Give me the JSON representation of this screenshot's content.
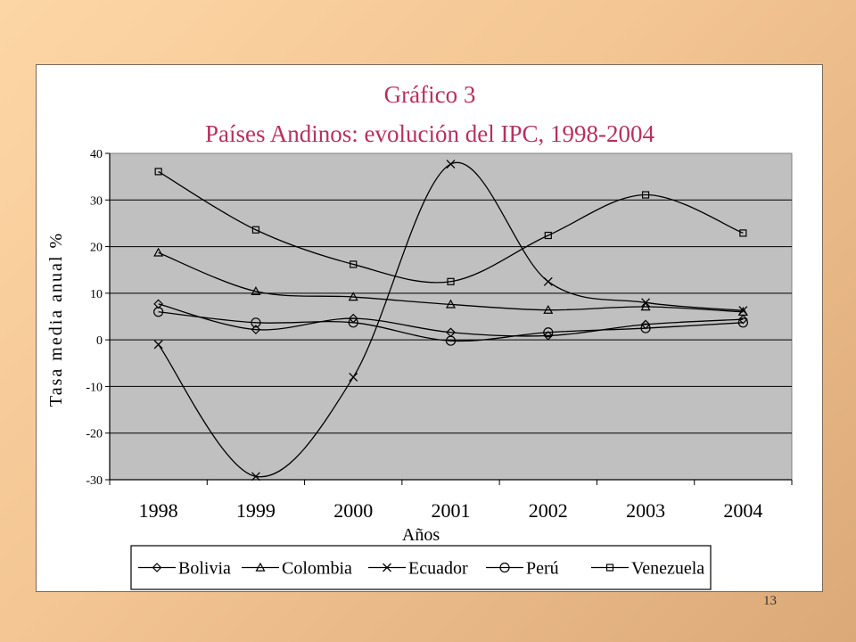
{
  "page": {
    "number": "13"
  },
  "chart_data": {
    "type": "line",
    "title": "Gráfico 3",
    "subtitle": "Países Andinos: evolución del IPC, 1998-2004",
    "xlabel": "Años",
    "ylabel": "Tasa media anual %",
    "categories": [
      "1998",
      "1999",
      "2000",
      "2001",
      "2002",
      "2003",
      "2004"
    ],
    "ylim": [
      -30,
      40
    ],
    "yticks": [
      40,
      30,
      20,
      10,
      0,
      -10,
      -20,
      -30
    ],
    "grid": true,
    "legend_position": "bottom",
    "plot_background": "#c0c0c0",
    "series": [
      {
        "name": "Bolivia",
        "marker": "diamond",
        "values": [
          7.7,
          2.2,
          4.6,
          1.6,
          0.9,
          3.3,
          4.4
        ]
      },
      {
        "name": "Colombia",
        "marker": "triangle",
        "values": [
          18.7,
          10.4,
          9.2,
          7.6,
          6.4,
          7.1,
          6.0
        ]
      },
      {
        "name": "Ecuador",
        "marker": "x",
        "values": [
          -1.0,
          -29.3,
          -8.0,
          37.7,
          12.5,
          8.0,
          6.3
        ]
      },
      {
        "name": "Perú",
        "marker": "circle",
        "values": [
          6.0,
          3.7,
          3.7,
          -0.2,
          1.6,
          2.5,
          3.7
        ]
      },
      {
        "name": "Venezuela",
        "marker": "square",
        "values": [
          36.1,
          23.6,
          16.2,
          12.5,
          22.4,
          31.1,
          22.9
        ]
      }
    ]
  }
}
